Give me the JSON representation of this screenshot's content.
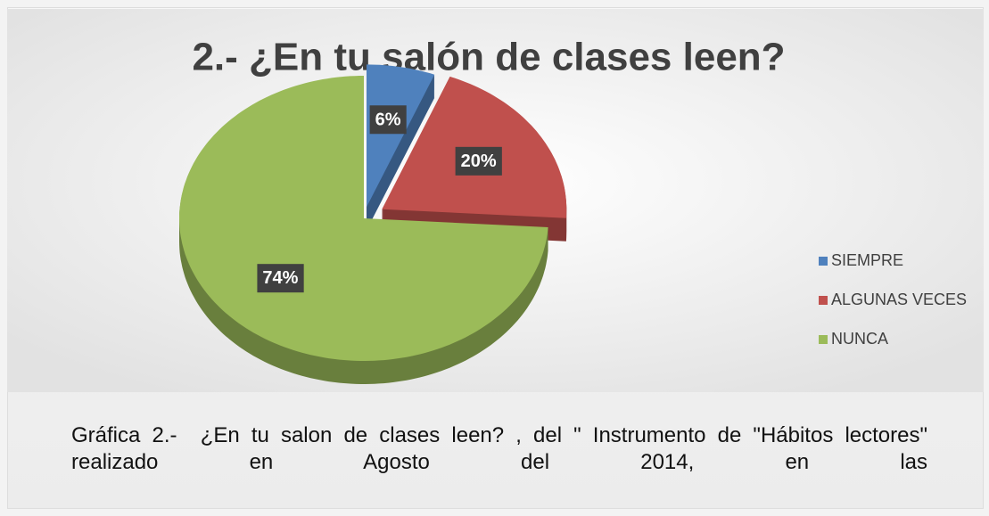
{
  "chart_data": {
    "type": "pie",
    "title": "2.- ¿En tu salón de clases leen?",
    "categories": [
      "SIEMPRE",
      "ALGUNAS VECES",
      "NUNCA"
    ],
    "values": [
      6,
      20,
      74
    ],
    "value_labels": [
      "6%",
      "20%",
      "74%"
    ],
    "colors": [
      "#4f81bd",
      "#c0504d",
      "#9bbb59"
    ],
    "legend": "right"
  },
  "caption": "Gráfica 2.-  ¿En tu salon de clases leen? , del \" Instrumento de \"Hábitos lectores\" realizado en Agosto del 2014, en las"
}
